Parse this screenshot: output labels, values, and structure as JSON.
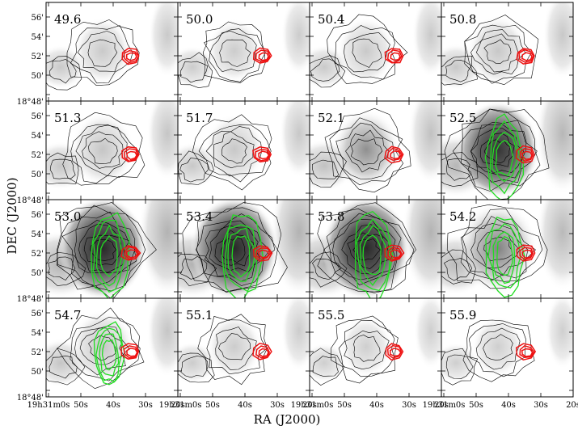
{
  "chart_data": {
    "type": "heatmap",
    "description": "",
    "xlabel": "RA  (J2000)",
    "ylabel": "DEC  (J2000)",
    "rows": 4,
    "cols": 4,
    "velocities": [
      "49.6",
      "50.0",
      "50.4",
      "50.8",
      "51.3",
      "51.7",
      "52.1",
      "52.5",
      "53.0",
      "53.4",
      "53.8",
      "54.2",
      "54.7",
      "55.1",
      "55.5",
      "55.9"
    ],
    "x_ticks": [
      "19h31m0s",
      "50s",
      "40s",
      "30s",
      "20s"
    ],
    "y_ticks": [
      "56'",
      "54'",
      "52'",
      "50'",
      "18°48'"
    ],
    "overlay_colors": {
      "green": "#22dd22",
      "red": "#ee1111"
    },
    "panels": [
      {
        "v": "49.6",
        "peak": 0.45,
        "green": false
      },
      {
        "v": "50.0",
        "peak": 0.4,
        "green": false
      },
      {
        "v": "50.4",
        "peak": 0.45,
        "green": false
      },
      {
        "v": "50.8",
        "peak": 0.5,
        "green": false
      },
      {
        "v": "51.3",
        "peak": 0.55,
        "green": false
      },
      {
        "v": "51.7",
        "peak": 0.5,
        "green": false
      },
      {
        "v": "52.1",
        "peak": 0.65,
        "green": false
      },
      {
        "v": "52.5",
        "peak": 0.9,
        "green": true
      },
      {
        "v": "53.0",
        "peak": 1.0,
        "green": true
      },
      {
        "v": "53.4",
        "peak": 1.0,
        "green": true
      },
      {
        "v": "53.8",
        "peak": 1.0,
        "green": true
      },
      {
        "v": "54.2",
        "peak": 0.85,
        "green": true
      },
      {
        "v": "54.7",
        "peak": 0.55,
        "green": true
      },
      {
        "v": "55.1",
        "peak": 0.4,
        "green": false
      },
      {
        "v": "55.5",
        "peak": 0.35,
        "green": false
      },
      {
        "v": "55.9",
        "peak": 0.35,
        "green": false
      }
    ]
  }
}
